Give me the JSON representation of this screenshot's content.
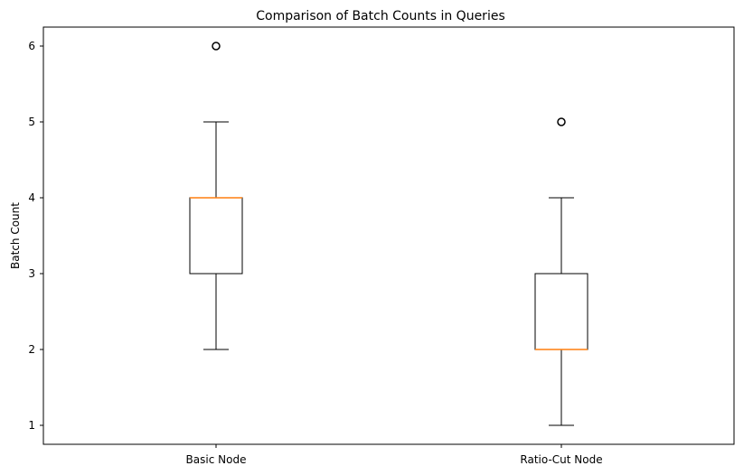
{
  "chart_data": {
    "type": "box",
    "title": "Comparison of Batch Counts in Queries",
    "xlabel": "",
    "ylabel": "Batch Count",
    "ylim": [
      0.75,
      6.25
    ],
    "yticks": [
      1,
      2,
      3,
      4,
      5,
      6
    ],
    "grid": false,
    "categories": [
      "Basic Node",
      "Ratio-Cut Node"
    ],
    "boxes": [
      {
        "category": "Basic Node",
        "whisker_low": 2,
        "q1": 3,
        "median": 4,
        "q3": 4,
        "whisker_high": 5,
        "outliers": [
          6
        ]
      },
      {
        "category": "Ratio-Cut Node",
        "whisker_low": 1,
        "q1": 2,
        "median": 2,
        "q3": 3,
        "whisker_high": 4,
        "outliers": [
          5
        ]
      }
    ],
    "colors": {
      "box": "#000000",
      "median": "#ff7f0e",
      "outlier": "#000000"
    }
  }
}
